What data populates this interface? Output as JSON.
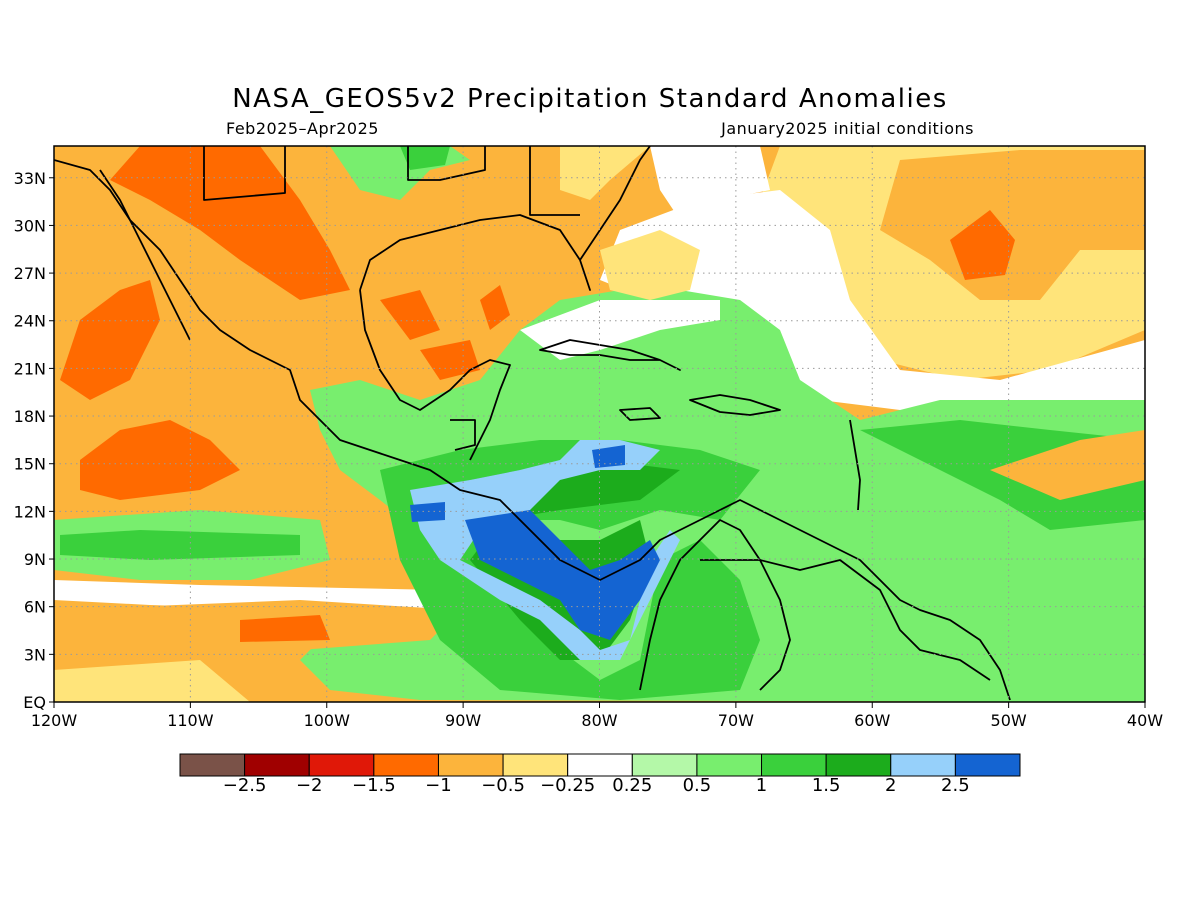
{
  "title": "NASA_GEOS5v2 Precipitation Standard Anomalies",
  "subtitle_left": "Feb2025–Apr2025",
  "subtitle_right": "January2025 initial conditions",
  "axes": {
    "lon_ticks": [
      "120W",
      "110W",
      "100W",
      "90W",
      "80W",
      "70W",
      "60W",
      "50W",
      "40W"
    ],
    "lat_ticks": [
      "EQ",
      "3N",
      "6N",
      "9N",
      "12N",
      "15N",
      "18N",
      "21N",
      "24N",
      "27N",
      "30N",
      "33N"
    ],
    "lon_range": [
      -120,
      -40
    ],
    "lat_range": [
      0,
      35
    ],
    "grid": "dotted"
  },
  "colorbar": {
    "labels": [
      "−2.5",
      "−2",
      "−1.5",
      "−1",
      "−0.5",
      "−0.25",
      "0.25",
      "0.5",
      "1",
      "1.5",
      "2",
      "2.5"
    ],
    "colors": [
      "#7a5248",
      "#a00000",
      "#e01808",
      "#ff6a00",
      "#fcb43c",
      "#ffe47a",
      "#ffffff",
      "#b4f8a8",
      "#78ee6e",
      "#3ad03c",
      "#1cac1c",
      "#96d0fa",
      "#1464d2"
    ]
  },
  "map_colors": {
    "orange_dark": "#ff6a00",
    "orange": "#fcb43c",
    "yellow": "#ffe47a",
    "white": "#ffffff",
    "green_light": "#b4f8a8",
    "green": "#78ee6e",
    "green_mid": "#3ad03c",
    "green_dark": "#1cac1c",
    "blue_light": "#96d0fa",
    "blue": "#1464d2"
  }
}
